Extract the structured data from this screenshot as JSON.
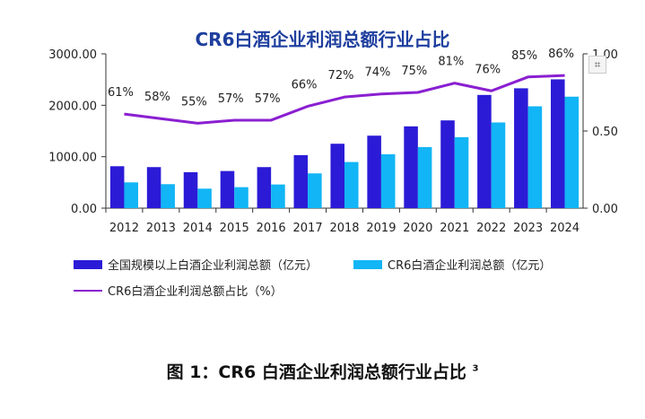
{
  "chart_data": {
    "type": "bar",
    "title": "CR6白酒企业利润总额行业占比",
    "categories": [
      "2012",
      "2013",
      "2014",
      "2015",
      "2016",
      "2017",
      "2018",
      "2019",
      "2020",
      "2021",
      "2022",
      "2023",
      "2024"
    ],
    "series": [
      {
        "name": "全国规模以上白酒企业利润总额（亿元）",
        "type": "bar",
        "axis": "left",
        "color": "#2b1bd6",
        "values": [
          815,
          798,
          699,
          722,
          798,
          1031,
          1252,
          1409,
          1590,
          1706,
          2201,
          2330,
          2504
        ]
      },
      {
        "name": "CR6白酒企业利润总额（亿元）",
        "type": "bar",
        "axis": "left",
        "color": "#12b5f5",
        "values": [
          501,
          466,
          379,
          408,
          460,
          676,
          897,
          1048,
          1188,
          1380,
          1666,
          1980,
          2167
        ]
      },
      {
        "name": "CR6白酒企业利润总额占比（%）",
        "type": "line",
        "axis": "right",
        "color": "#8a1fd1",
        "values": [
          0.61,
          0.58,
          0.55,
          0.57,
          0.57,
          0.66,
          0.72,
          0.74,
          0.75,
          0.81,
          0.76,
          0.85,
          0.86
        ],
        "labels": [
          "61%",
          "58%",
          "55%",
          "57%",
          "57%",
          "66%",
          "72%",
          "74%",
          "75%",
          "81%",
          "76%",
          "85%",
          "86%"
        ]
      }
    ],
    "ylim": [
      0,
      3000
    ],
    "yticks": [
      "0.00",
      "1000.00",
      "2000.00",
      "3000.00"
    ],
    "y2lim": [
      0,
      1
    ],
    "y2ticks": [
      "0.00",
      "0.50",
      "1.00"
    ],
    "legend": "bottom",
    "grid": false
  },
  "caption": {
    "text": "图 1：CR6 白酒企业利润总额行业占比",
    "sup": "3"
  },
  "icon": "image-icon"
}
